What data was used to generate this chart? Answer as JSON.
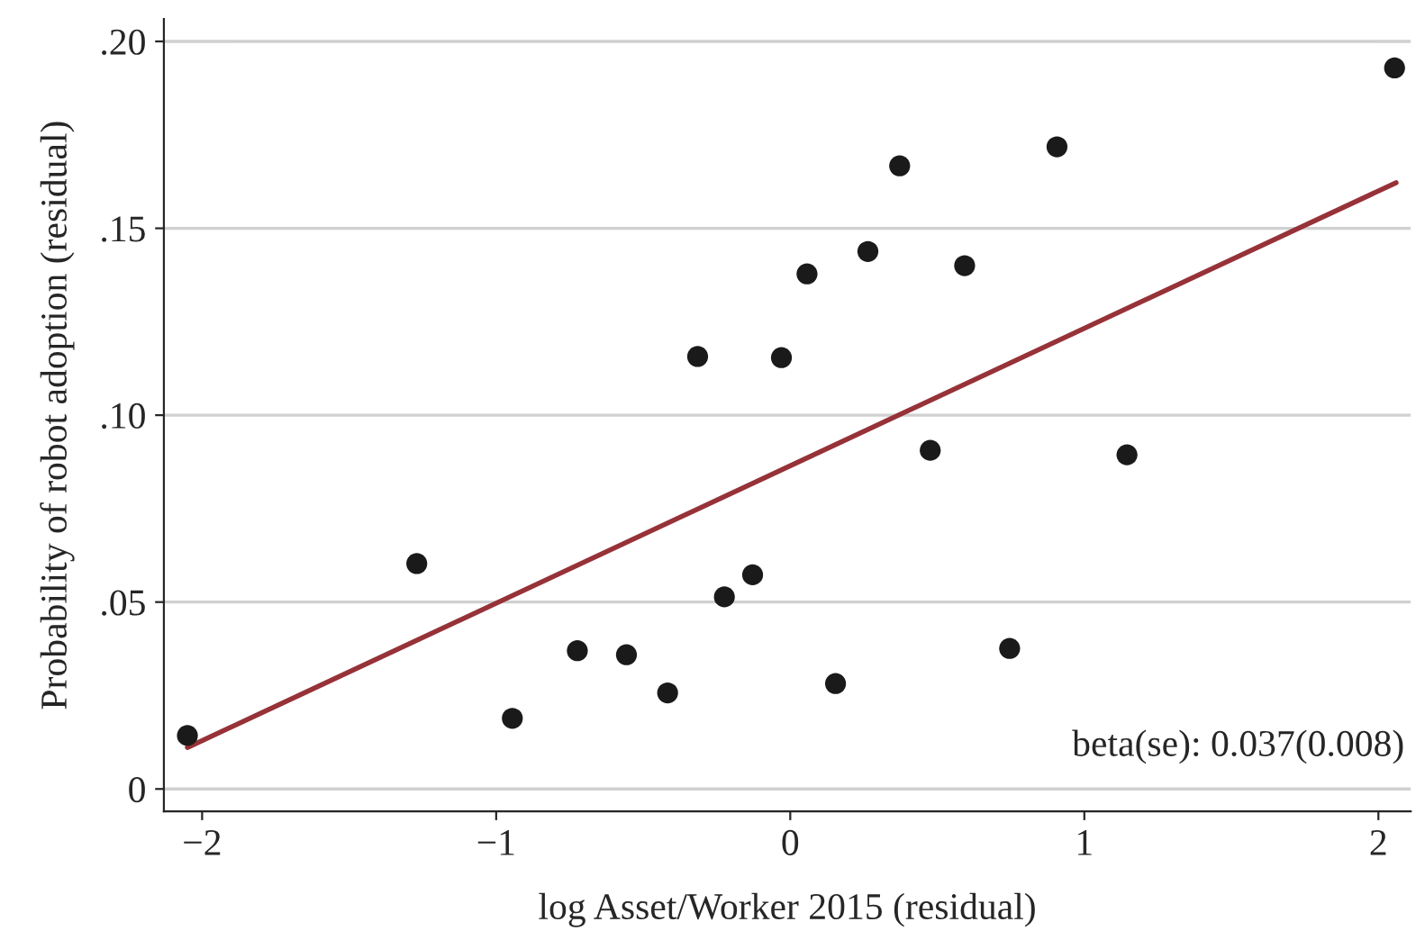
{
  "chart_data": {
    "type": "scatter",
    "xlabel": "log Asset/Worker 2015 (residual)",
    "ylabel": "Probability of robot adoption (residual)",
    "xlim": [
      -2.13,
      2.11
    ],
    "ylim": [
      -0.006,
      0.206
    ],
    "xticks": [
      {
        "value": -2,
        "label": "−2"
      },
      {
        "value": -1,
        "label": "−1"
      },
      0,
      1,
      2
    ],
    "yticks": [
      0,
      {
        "value": 0.05,
        "label": ".05"
      },
      {
        "value": 0.1,
        "label": ".10"
      },
      {
        "value": 0.15,
        "label": ".15"
      },
      {
        "value": 0.2,
        "label": ".20"
      }
    ],
    "grid": "y",
    "series": [
      {
        "marker": "circle",
        "color": "#1a1a1a",
        "x": [
          -2.05,
          -1.27,
          -0.945,
          -0.724,
          -0.557,
          -0.417,
          -0.315,
          -0.224,
          -0.128,
          -0.03,
          0.057,
          0.154,
          0.264,
          0.372,
          0.476,
          0.593,
          0.746,
          0.907,
          1.145,
          2.055
        ],
        "values": [
          0.0143,
          0.0603,
          0.0189,
          0.037,
          0.0359,
          0.0257,
          0.1157,
          0.0514,
          0.0573,
          0.1154,
          0.1378,
          0.0282,
          0.1438,
          0.1667,
          0.0906,
          0.14,
          0.0376,
          0.1718,
          0.0894,
          0.1929
        ]
      },
      {
        "type": "line",
        "color": "#963238",
        "x": [
          -2.05,
          2.06
        ],
        "values": [
          0.0111,
          0.1622
        ]
      }
    ],
    "annotations": [
      "beta(se): 0.037(0.008)"
    ]
  }
}
